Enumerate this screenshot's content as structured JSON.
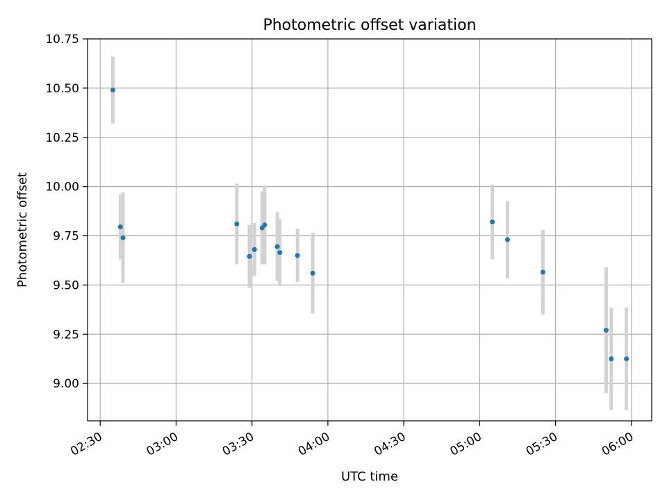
{
  "chart_data": {
    "type": "scatter",
    "title": "Photometric offset variation",
    "xlabel": "UTC time",
    "ylabel": "Photometric offset",
    "grid": true,
    "legend": "none",
    "x_tick_labels": [
      "02:30",
      "03:00",
      "03:30",
      "04:00",
      "04:30",
      "05:00",
      "05:30",
      "06:00"
    ],
    "y_tick_labels": [
      "9.00",
      "9.25",
      "9.50",
      "9.75",
      "10.00",
      "10.25",
      "10.50",
      "10.75"
    ],
    "xlim": [
      "02:25",
      "06:08"
    ],
    "ylim": [
      8.81,
      10.75
    ],
    "colors": {
      "point": "#1f77b4",
      "errorbar": "#d3d3d3",
      "grid": "#b0b0b0"
    },
    "points": [
      {
        "x": "02:35",
        "y": 10.49,
        "err": 0.17
      },
      {
        "x": "02:38",
        "y": 9.795,
        "err": 0.165
      },
      {
        "x": "02:39",
        "y": 9.74,
        "err": 0.23
      },
      {
        "x": "03:24",
        "y": 9.81,
        "err": 0.205
      },
      {
        "x": "03:29",
        "y": 9.645,
        "err": 0.16
      },
      {
        "x": "03:31",
        "y": 9.68,
        "err": 0.135
      },
      {
        "x": "03:34",
        "y": 9.79,
        "err": 0.185
      },
      {
        "x": "03:35",
        "y": 9.805,
        "err": 0.2
      },
      {
        "x": "03:40",
        "y": 9.695,
        "err": 0.175
      },
      {
        "x": "03:41",
        "y": 9.665,
        "err": 0.17
      },
      {
        "x": "03:48",
        "y": 9.65,
        "err": 0.135
      },
      {
        "x": "03:54",
        "y": 9.56,
        "err": 0.205
      },
      {
        "x": "05:05",
        "y": 9.82,
        "err": 0.19
      },
      {
        "x": "05:11",
        "y": 9.73,
        "err": 0.195
      },
      {
        "x": "05:25",
        "y": 9.565,
        "err": 0.215
      },
      {
        "x": "05:50",
        "y": 9.27,
        "err": 0.32
      },
      {
        "x": "05:52",
        "y": 9.125,
        "err": 0.26
      },
      {
        "x": "05:58",
        "y": 9.125,
        "err": 0.26
      }
    ]
  }
}
